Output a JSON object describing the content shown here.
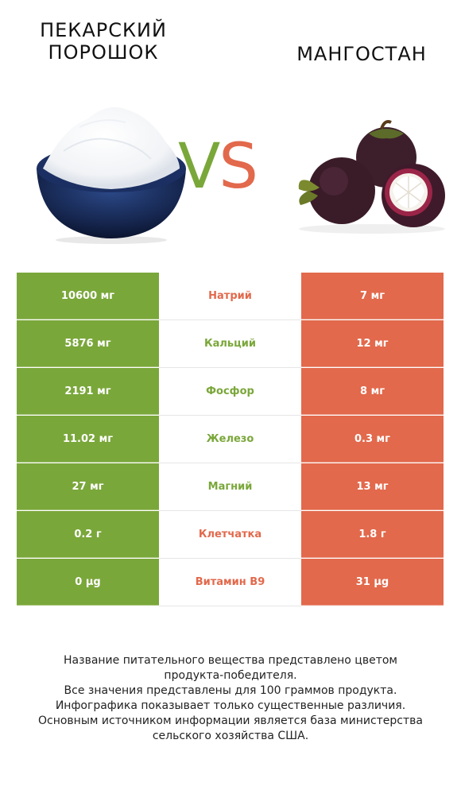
{
  "left_product": {
    "title_line1": "ПЕКАРСКИЙ",
    "title_line2": "ПОРОШОК"
  },
  "right_product": {
    "title": "МАНГОСТАН"
  },
  "vs": {
    "v": "V",
    "s": "S"
  },
  "colors": {
    "left": "#7aa73a",
    "right": "#e2694c"
  },
  "rows": [
    {
      "left": "10600 мг",
      "name": "Натрий",
      "right": "7 мг",
      "winner": "right"
    },
    {
      "left": "5876 мг",
      "name": "Кальций",
      "right": "12 мг",
      "winner": "left"
    },
    {
      "left": "2191 мг",
      "name": "Фосфор",
      "right": "8 мг",
      "winner": "left"
    },
    {
      "left": "11.02 мг",
      "name": "Железо",
      "right": "0.3 мг",
      "winner": "left"
    },
    {
      "left": "27 мг",
      "name": "Магний",
      "right": "13 мг",
      "winner": "left"
    },
    {
      "left": "0.2 г",
      "name": "Клетчатка",
      "right": "1.8 г",
      "winner": "right"
    },
    {
      "left": "0 µg",
      "name": "Витамин B9",
      "right": "31 µg",
      "winner": "right"
    }
  ],
  "footer": {
    "line1": "Название питательного вещества представлено цветом",
    "line2": "продукта-победителя.",
    "line3": "Все значения представлены для 100 граммов продукта.",
    "line4": "Инфографика показывает только существенные различия.",
    "line5": "Основным источником информации является база министерства",
    "line6": "сельского хозяйства США."
  }
}
